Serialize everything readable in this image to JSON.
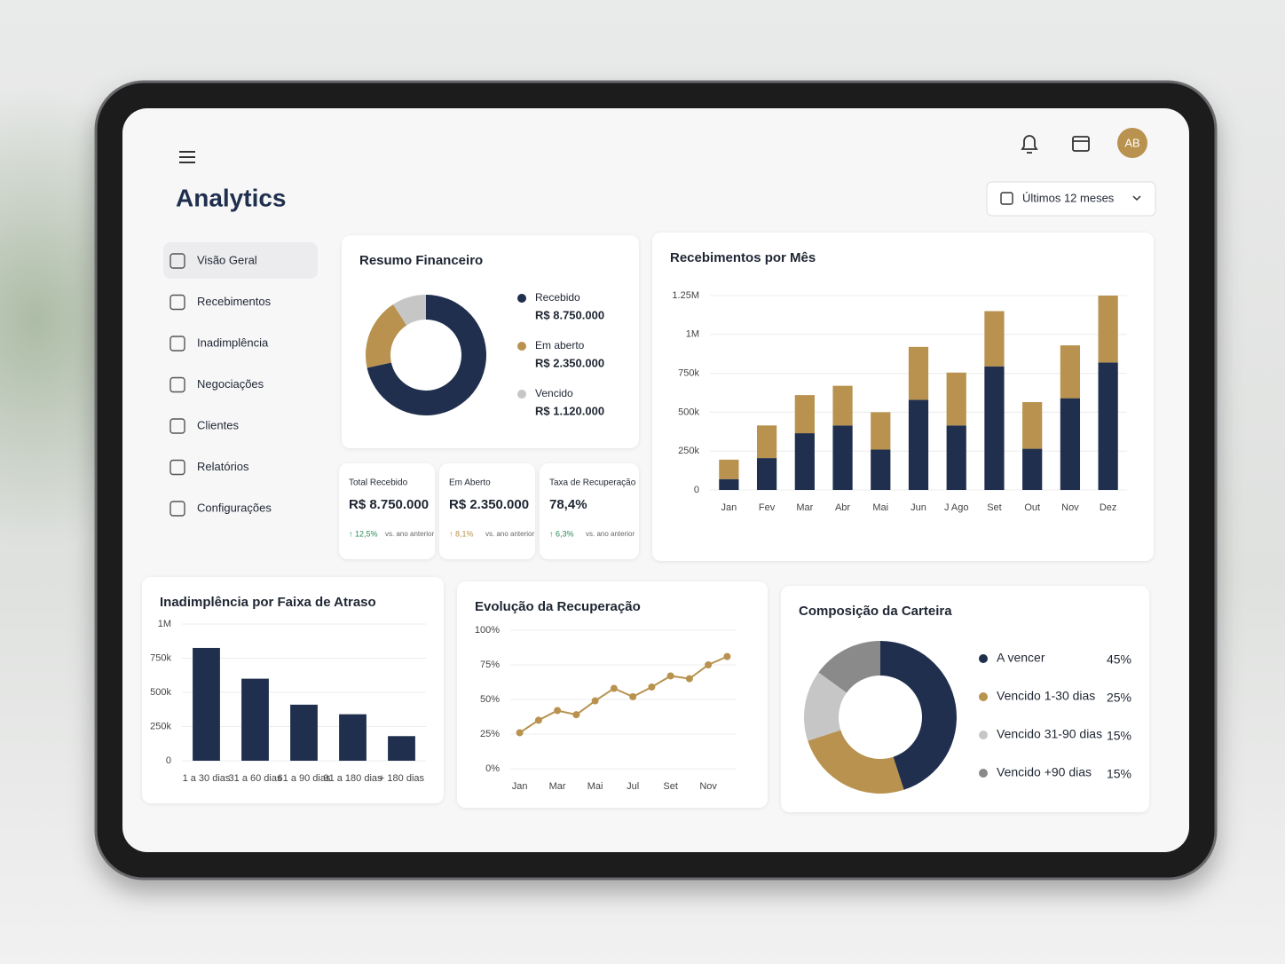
{
  "header": {
    "title": "Analytics",
    "date_filter": "Últimos 12 meses",
    "avatar": "AB"
  },
  "sidebar": {
    "items": [
      "Visão Geral",
      "Recebimentos",
      "Inadimplência",
      "Negociações",
      "Clientes",
      "Relatórios",
      "Configurações"
    ]
  },
  "kpis": [
    {
      "label": "Total Recebido",
      "value": "R$ 8.750.000",
      "change": "↑ 12,5%",
      "note": "vs. ano anterior",
      "color": "#2e8b57"
    },
    {
      "label": "Em Aberto",
      "value": "R$ 2.350.000",
      "change": "↑ 8,1%",
      "note": "vs. ano anterior",
      "color": "#b8924e"
    },
    {
      "label": "Taxa de Recuperação",
      "value": "78,4%",
      "change": "↑ 6,3%",
      "note": "vs. ano anterior",
      "color": "#2e8b57"
    }
  ],
  "chart_data": [
    {
      "type": "donut",
      "title": "Resumo Financeiro",
      "categories": [
        "Recebido",
        "Em aberto",
        "Vencido"
      ],
      "values": [
        8750000,
        2350000,
        1120000
      ],
      "value_labels": [
        "R$ 8.750.000",
        "R$ 2.350.000",
        "R$ 1.120.000"
      ],
      "colors": [
        "#1f2f4d",
        "#b8924e",
        "#c6c6c6"
      ]
    },
    {
      "type": "stacked_bar",
      "title": "Recebimentos por Mês",
      "categories": [
        "Jan",
        "Fev",
        "Mar",
        "Abr",
        "Mai",
        "Jun",
        "J Ago",
        "Set",
        "Out",
        "Nov",
        "Dez"
      ],
      "series": [
        {
          "color": "#1f2f4d",
          "values": [
            70000,
            205000,
            365000,
            415000,
            260000,
            580000,
            415000,
            795000,
            265000,
            590000,
            820000
          ]
        },
        {
          "color": "#b8924e",
          "values": [
            125000,
            210000,
            245000,
            255000,
            240000,
            340000,
            340000,
            355000,
            300000,
            340000,
            430000
          ]
        }
      ],
      "ylim": [
        0,
        1250000
      ],
      "yticks": [
        0,
        {
          "value": 250000,
          "label": "250k"
        },
        {
          "value": 500000,
          "label": "500k"
        },
        {
          "value": 750000,
          "label": "750k"
        },
        {
          "value": 1000000,
          "label": "1M"
        },
        {
          "value": 1250000,
          "label": "1.25M"
        }
      ],
      "grid": true
    },
    {
      "type": "bar",
      "title": "Inadimplência por Faixa de Atraso",
      "categories": [
        "1 a 30 dias",
        "31 a 60 dias",
        "61 a 90 dias",
        "91 a 180 dias",
        "+ 180 dias"
      ],
      "values": [
        825000,
        600000,
        410000,
        340000,
        180000
      ],
      "color": "#1f2f4d",
      "ylim": [
        0,
        1000000
      ],
      "yticks": [
        0,
        {
          "value": 250000,
          "label": "250k"
        },
        {
          "value": 500000,
          "label": "500k"
        },
        {
          "value": 750000,
          "label": "750k"
        },
        {
          "value": 1000000,
          "label": "1M"
        }
      ],
      "grid": true
    },
    {
      "type": "line",
      "title": "Evolução da Recuperação",
      "categories": [
        "Jan",
        null,
        "Mar",
        null,
        "Mai",
        null,
        "Jul",
        null,
        "Set",
        null,
        "Nov",
        null
      ],
      "values": [
        26,
        35,
        42,
        39,
        49,
        58,
        52,
        59,
        67,
        65,
        75,
        81
      ],
      "color": "#b8924e",
      "ylim": [
        0,
        100
      ],
      "yticks": [
        {
          "value": 0,
          "label": "0%"
        },
        {
          "value": 25,
          "label": "25%"
        },
        {
          "value": 50,
          "label": "50%"
        },
        {
          "value": 75,
          "label": "75%"
        },
        {
          "value": 100,
          "label": "100%"
        }
      ],
      "grid": true
    },
    {
      "type": "donut",
      "title": "Composição da Carteira",
      "categories": [
        "A vencer",
        "Vencido 1-30 dias",
        "Vencido 31-90 dias",
        "Vencido +90 dias"
      ],
      "values": [
        45,
        25,
        15,
        15
      ],
      "value_labels": [
        "45%",
        "25%",
        "15%",
        "15%"
      ],
      "colors": [
        "#1f2f4d",
        "#b8924e",
        "#c6c6c6",
        "#8a8a8a"
      ]
    }
  ]
}
